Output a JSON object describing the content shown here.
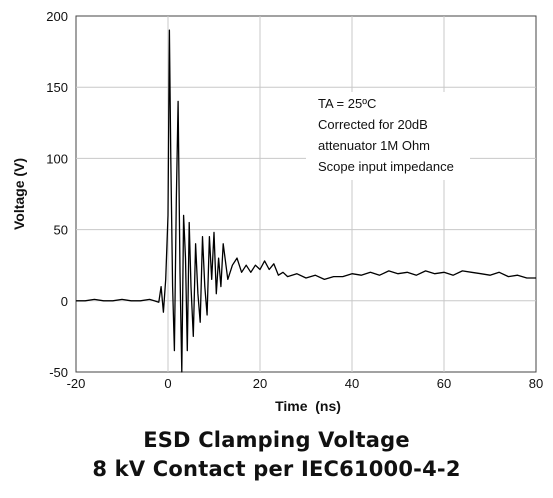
{
  "chart_data": {
    "type": "line",
    "title": "",
    "xlabel": "Time  (ns)",
    "ylabel": "Voltage (V)",
    "xlim": [
      -20,
      80
    ],
    "ylim": [
      -50,
      200
    ],
    "x_ticks": [
      -20,
      0,
      20,
      40,
      60,
      80
    ],
    "y_ticks": [
      -50,
      0,
      50,
      100,
      150,
      200
    ],
    "x_tick_labels": [
      "-20",
      "0",
      "20",
      "40",
      "60",
      "80"
    ],
    "y_tick_labels": [
      "-50",
      "0",
      "50",
      "100",
      "150",
      "200"
    ],
    "grid": true,
    "annotation": [
      "TA = 25ºC",
      "Corrected for 20dB",
      "attenuator 1M Ohm",
      "Scope input impedance"
    ],
    "series": [
      {
        "color": "#000000",
        "x": [
          -20,
          -18,
          -16,
          -14,
          -12,
          -10,
          -8,
          -6,
          -4,
          -3,
          -2,
          -1.5,
          -1,
          -0.5,
          0,
          0.3,
          0.6,
          1.0,
          1.4,
          1.8,
          2.2,
          2.6,
          3.0,
          3.4,
          3.8,
          4.2,
          4.6,
          5.0,
          5.5,
          6.0,
          6.5,
          7.0,
          7.5,
          8.0,
          8.5,
          9.0,
          9.5,
          10.0,
          10.5,
          11.0,
          11.5,
          12.0,
          13.0,
          14.0,
          15.0,
          16.0,
          17.0,
          18.0,
          19.0,
          20.0,
          21.0,
          22.0,
          23.0,
          24.0,
          25.0,
          26.0,
          28.0,
          30.0,
          32.0,
          34.0,
          36.0,
          38.0,
          40.0,
          42.0,
          44.0,
          46.0,
          48.0,
          50.0,
          52.0,
          54.0,
          56.0,
          58.0,
          60.0,
          62.0,
          64.0,
          66.0,
          68.0,
          70.0,
          72.0,
          74.0,
          76.0,
          78.0,
          80.0
        ],
        "values": [
          0,
          0,
          1,
          0,
          0,
          1,
          0,
          0,
          1,
          0,
          -1,
          10,
          -8,
          15,
          60,
          190,
          100,
          10,
          -35,
          70,
          140,
          20,
          -50,
          60,
          30,
          -35,
          55,
          10,
          -25,
          40,
          5,
          -15,
          45,
          10,
          -10,
          45,
          15,
          48,
          5,
          30,
          10,
          40,
          15,
          25,
          30,
          20,
          25,
          20,
          25,
          22,
          28,
          22,
          26,
          18,
          20,
          17,
          19,
          16,
          18,
          15,
          17,
          17,
          19,
          18,
          20,
          18,
          21,
          19,
          20,
          18,
          21,
          19,
          20,
          18,
          21,
          20,
          19,
          18,
          20,
          17,
          18,
          16,
          16
        ]
      }
    ]
  },
  "caption": {
    "line1": "ESD Clamping Voltage",
    "line2": "8 kV Contact per IEC61000-4-2"
  }
}
